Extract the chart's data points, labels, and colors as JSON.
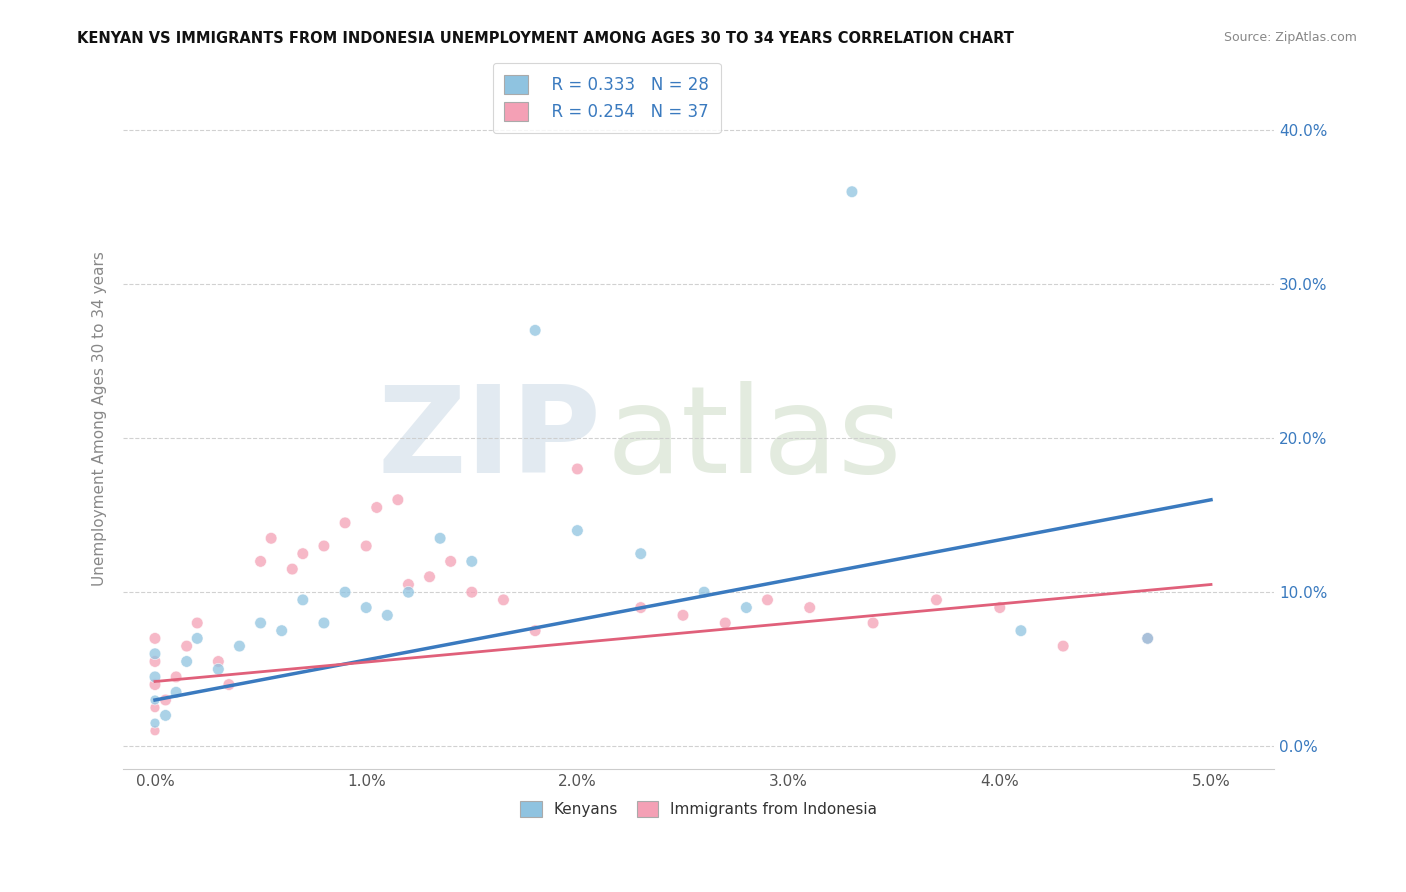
{
  "title": "KENYAN VS IMMIGRANTS FROM INDONESIA UNEMPLOYMENT AMONG AGES 30 TO 34 YEARS CORRELATION CHART",
  "source": "Source: ZipAtlas.com",
  "xlabel_ticks": [
    "0.0%",
    "1.0%",
    "2.0%",
    "3.0%",
    "4.0%",
    "5.0%"
  ],
  "ylabel_ticks": [
    "0.0%",
    "10.0%",
    "20.0%",
    "30.0%",
    "40.0%"
  ],
  "xlabel_vals": [
    0.0,
    1.0,
    2.0,
    3.0,
    4.0,
    5.0
  ],
  "ylabel_vals": [
    0.0,
    10.0,
    20.0,
    30.0,
    40.0
  ],
  "xlim": [
    -0.15,
    5.3
  ],
  "ylim": [
    -1.5,
    44
  ],
  "ylabel": "Unemployment Among Ages 30 to 34 years",
  "legend_labels": [
    "Kenyans",
    "Immigrants from Indonesia"
  ],
  "kenyan_R": "R = 0.333",
  "kenyan_N": "N = 28",
  "indonesia_R": "R = 0.254",
  "indonesia_N": "N = 37",
  "blue_color": "#8fc3e0",
  "pink_color": "#f4a0b5",
  "blue_line_color": "#3a7abf",
  "pink_line_color": "#e0607a",
  "legend_text_color": "#3a7abf",
  "watermark_zip": "ZIP",
  "watermark_atlas": "atlas",
  "kenyan_x": [
    0.0,
    0.0,
    0.0,
    0.0,
    0.05,
    0.1,
    0.15,
    0.2,
    0.3,
    0.4,
    0.5,
    0.6,
    0.7,
    0.8,
    0.9,
    1.0,
    1.1,
    1.2,
    1.35,
    1.5,
    1.8,
    2.0,
    2.3,
    2.6,
    2.8,
    3.3,
    4.1,
    4.7
  ],
  "kenyan_y": [
    1.5,
    3.0,
    4.5,
    6.0,
    2.0,
    3.5,
    5.5,
    7.0,
    5.0,
    6.5,
    8.0,
    7.5,
    9.5,
    8.0,
    10.0,
    9.0,
    8.5,
    10.0,
    13.5,
    12.0,
    27.0,
    14.0,
    12.5,
    10.0,
    9.0,
    36.0,
    7.5,
    7.0
  ],
  "kenyan_sizes": [
    50,
    50,
    70,
    70,
    70,
    70,
    70,
    70,
    70,
    70,
    70,
    70,
    70,
    70,
    70,
    70,
    70,
    70,
    70,
    70,
    70,
    70,
    70,
    70,
    70,
    70,
    70,
    70
  ],
  "indonesia_x": [
    0.0,
    0.0,
    0.0,
    0.0,
    0.0,
    0.05,
    0.1,
    0.15,
    0.2,
    0.3,
    0.35,
    0.5,
    0.55,
    0.65,
    0.7,
    0.8,
    0.9,
    1.0,
    1.05,
    1.15,
    1.2,
    1.3,
    1.4,
    1.5,
    1.65,
    1.8,
    2.0,
    2.3,
    2.5,
    2.7,
    2.9,
    3.1,
    3.4,
    3.7,
    4.0,
    4.3,
    4.7
  ],
  "indonesia_y": [
    1.0,
    2.5,
    4.0,
    5.5,
    7.0,
    3.0,
    4.5,
    6.5,
    8.0,
    5.5,
    4.0,
    12.0,
    13.5,
    11.5,
    12.5,
    13.0,
    14.5,
    13.0,
    15.5,
    16.0,
    10.5,
    11.0,
    12.0,
    10.0,
    9.5,
    7.5,
    18.0,
    9.0,
    8.5,
    8.0,
    9.5,
    9.0,
    8.0,
    9.5,
    9.0,
    6.5,
    7.0
  ],
  "indonesia_sizes": [
    50,
    50,
    70,
    70,
    70,
    70,
    70,
    70,
    70,
    70,
    70,
    70,
    70,
    70,
    70,
    70,
    70,
    70,
    70,
    70,
    70,
    70,
    70,
    70,
    70,
    70,
    70,
    70,
    70,
    70,
    70,
    70,
    70,
    70,
    70,
    70,
    70
  ],
  "blue_trend_x0": 0.0,
  "blue_trend_y0": 3.0,
  "blue_trend_x1": 5.0,
  "blue_trend_y1": 16.0,
  "pink_trend_x0": 0.0,
  "pink_trend_y0": 4.2,
  "pink_trend_x1": 5.0,
  "pink_trend_y1": 10.5
}
